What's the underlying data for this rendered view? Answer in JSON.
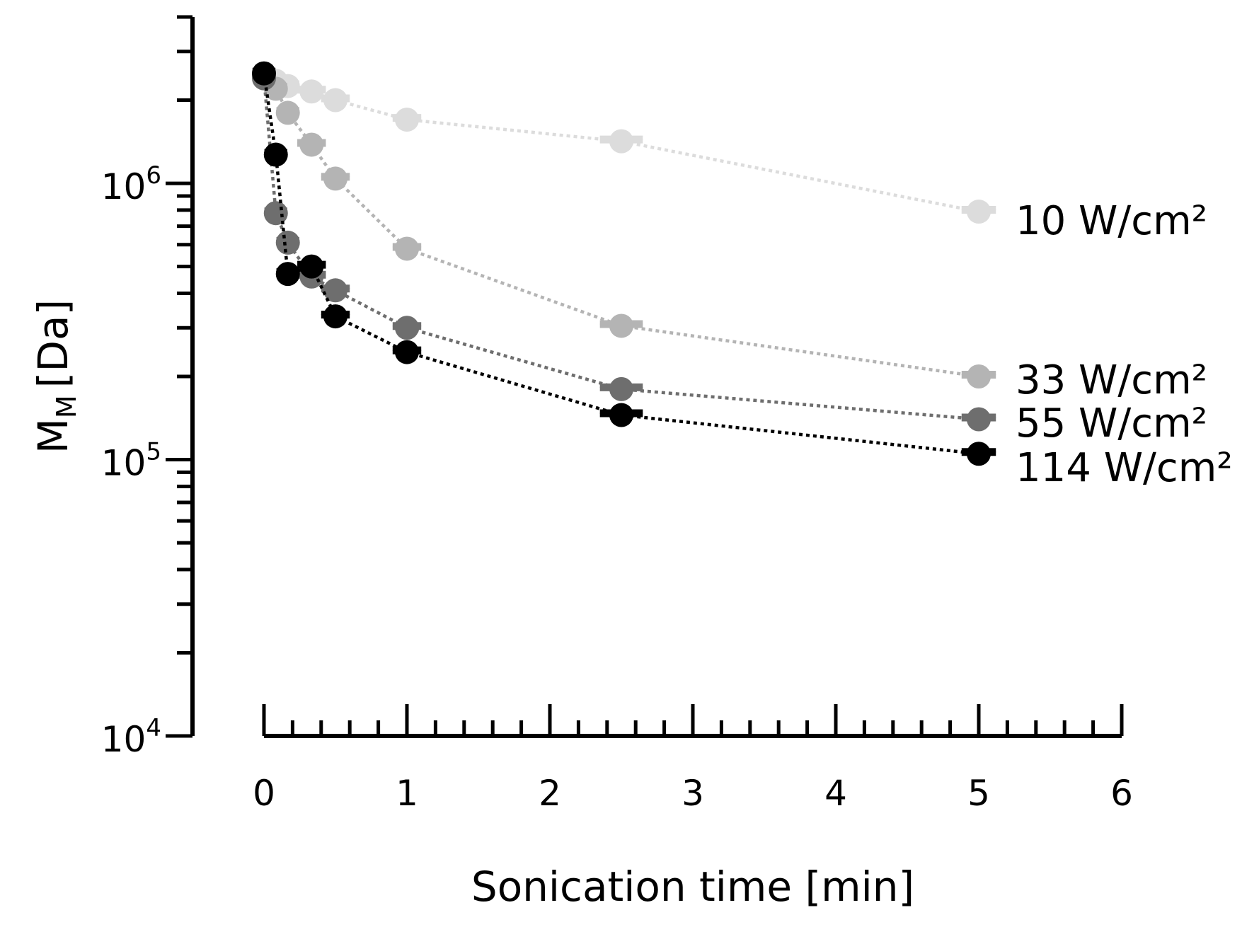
{
  "chart_data": {
    "type": "scatter",
    "title": "",
    "xlabel": "Sonication time [min]",
    "ylabel_main": "M",
    "ylabel_sub": "M",
    "ylabel_unit": "[Da]",
    "xlim": [
      0,
      6
    ],
    "ylim": [
      10000,
      4000000
    ],
    "yscale": "log",
    "grid": false,
    "x_ticks": [
      "0",
      "1",
      "2",
      "3",
      "4",
      "5",
      "6"
    ],
    "y_ticks": [
      {
        "base": "10",
        "exp": "4",
        "value": 10000
      },
      {
        "base": "10",
        "exp": "5",
        "value": 100000
      },
      {
        "base": "10",
        "exp": "6",
        "value": 1000000
      }
    ],
    "series": [
      {
        "name": "10 W/cm²",
        "color": "#dcdcdc",
        "x": [
          0,
          0.083,
          0.167,
          0.333,
          0.5,
          1,
          2.5,
          5
        ],
        "values": [
          2500000,
          2350000,
          2250000,
          2150000,
          2000000,
          1700000,
          1420000,
          790000
        ],
        "xerr": [
          0.08,
          0.08,
          0.08,
          0.1,
          0.1,
          0.1,
          0.15,
          0.12
        ]
      },
      {
        "name": "33 W/cm²",
        "color": "#b4b4b4",
        "x": [
          0,
          0.083,
          0.167,
          0.333,
          0.5,
          1,
          2.5,
          5
        ],
        "values": [
          2450000,
          2200000,
          1800000,
          1380000,
          1040000,
          580000,
          305000,
          200000
        ],
        "xerr": [
          0.08,
          0.08,
          0.08,
          0.1,
          0.1,
          0.1,
          0.15,
          0.12
        ]
      },
      {
        "name": "55 W/cm²",
        "color": "#6e6e6e",
        "x": [
          0,
          0.083,
          0.167,
          0.333,
          0.5,
          1,
          2.5,
          5
        ],
        "values": [
          2400000,
          780000,
          610000,
          460000,
          410000,
          300000,
          180000,
          140000
        ],
        "xerr": [
          0.08,
          0.08,
          0.08,
          0.1,
          0.1,
          0.1,
          0.15,
          0.12
        ]
      },
      {
        "name": "114 W/cm²",
        "color": "#000000",
        "x": [
          0,
          0.083,
          0.167,
          0.333,
          0.5,
          1,
          2.5,
          5
        ],
        "values": [
          2500000,
          1270000,
          470000,
          500000,
          330000,
          245000,
          145000,
          105000
        ],
        "xerr": [
          0.08,
          0.08,
          0.08,
          0.1,
          0.1,
          0.1,
          0.15,
          0.12
        ]
      }
    ]
  }
}
